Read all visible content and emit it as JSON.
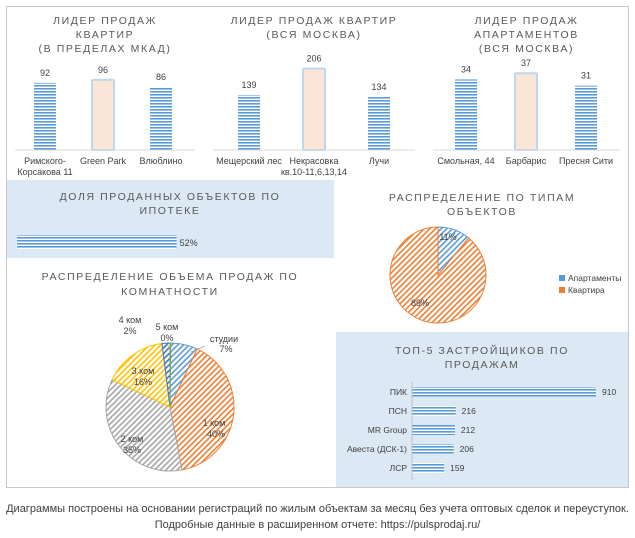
{
  "chart_data": [
    {
      "type": "bar",
      "title": "ЛИДЕР ПРОДАЖ КВАРТИР (В ПРЕДЕЛАХ МКАД)",
      "title_lines": [
        "ЛИДЕР ПРОДАЖ",
        "КВАРТИР",
        "(В ПРЕДЕЛАХ МКАД)"
      ],
      "categories": [
        "Римского-Корсакова 11",
        "Green Park",
        "Влюблино"
      ],
      "category_lines": [
        [
          "Римского-",
          "Корсакова 11"
        ],
        [
          "Green Park"
        ],
        [
          "Влюблино"
        ]
      ],
      "values": [
        92,
        96,
        86
      ],
      "highlight_index": 1
    },
    {
      "type": "bar",
      "title": "ЛИДЕР ПРОДАЖ КВАРТИР (ВСЯ МОСКВА)",
      "title_lines": [
        "ЛИДЕР ПРОДАЖ  КВАРТИР",
        "(ВСЯ МОСКВА)"
      ],
      "categories": [
        "Мещерский лес",
        "Некрасовка кв.10-11,6,13,14",
        "Лучи"
      ],
      "category_lines": [
        [
          "Мещерский лес"
        ],
        [
          "Некрасовка",
          "кв.10-11,6,13,14"
        ],
        [
          "Лучи"
        ]
      ],
      "values": [
        139,
        206,
        134
      ],
      "highlight_index": 1
    },
    {
      "type": "bar",
      "title": "ЛИДЕР ПРОДАЖ АПАРТАМЕНТОВ (ВСЯ МОСКВА)",
      "title_lines": [
        "ЛИДЕР ПРОДАЖ",
        "АПАРТАМЕНТОВ",
        "(ВСЯ МОСКВА)"
      ],
      "categories": [
        "Смольная, 44",
        "Барбарис",
        "Пресня Сити"
      ],
      "category_lines": [
        [
          "Смольная, 44"
        ],
        [
          "Барбарис"
        ],
        [
          "Пресня Сити"
        ]
      ],
      "values": [
        34,
        37,
        31
      ],
      "highlight_index": 1
    },
    {
      "type": "bar",
      "orientation": "horizontal",
      "title": "ДОЛЯ ПРОДАННЫХ ОБЪЕКТОВ ПО ИПОТЕКЕ",
      "title_lines": [
        "ДОЛЯ ПРОДАННЫХ ОБЪЕКТОВ ПО",
        "ИПОТЕКЕ"
      ],
      "values": [
        52
      ],
      "value_labels": [
        "52%"
      ],
      "xlim": [
        0,
        100
      ]
    },
    {
      "type": "pie",
      "title": "РАСПРЕДЕЛЕНИЕ ПО ТИПАМ ОБЪЕКТОВ",
      "title_lines": [
        "РАСПРЕДЕЛЕНИЕ ПО ТИПАМ",
        "ОБЪЕКТОВ"
      ],
      "categories": [
        "Апартаменты",
        "Квартира"
      ],
      "values": [
        11,
        89
      ],
      "value_labels": [
        "11%",
        "89%"
      ],
      "colors": [
        "#5b9bd5",
        "#ed7d31"
      ],
      "legend": "right"
    },
    {
      "type": "pie",
      "title": "РАСПРЕДЕЛЕНИЕ ОБЪЕМА ПРОДАЖ ПО КОМНАТНОСТИ",
      "title_lines": [
        "РАСПРЕДЕЛЕНИЕ ОБЪЕМА ПРОДАЖ ПО",
        "КОМНАТНОСТИ"
      ],
      "categories": [
        "студии",
        "1 ком",
        "2 ком",
        "3 ком",
        "4 ком",
        "5 ком"
      ],
      "values": [
        7,
        40,
        35,
        16,
        2,
        0
      ],
      "value_labels": [
        "7%",
        "40%",
        "35%",
        "16%",
        "2%",
        "0%"
      ],
      "colors": [
        "#5b9bd5",
        "#ed7d31",
        "#a5a5a5",
        "#ffc000",
        "#4472c4",
        "#70ad47"
      ]
    },
    {
      "type": "bar",
      "orientation": "horizontal",
      "title": "ТОП-5 ЗАСТРОЙЩИКОВ ПО ПРОДАЖАМ",
      "title_lines": [
        "ТОП-5 ЗАСТРОЙЩИКОВ ПО",
        "ПРОДАЖАМ"
      ],
      "categories": [
        "ПИК",
        "ПСН",
        "MR Group",
        "Авеста (ДСК-1)",
        "ЛСР"
      ],
      "values": [
        910,
        216,
        212,
        206,
        159
      ]
    }
  ],
  "colors": {
    "bar_blue": "#5b9bd5",
    "bar_highlight_fill": "#fbe5d6",
    "bar_highlight_stroke": "#bdd7ee",
    "panel_blue_bg": "#dce8f4"
  },
  "footer": {
    "line1": "Диаграммы построены на основании регистраций по жилым объектам за месяц без учета оптовых сделок и переуступок.",
    "line2": "Подробные данные в расширенном отчете: https://pulsprodaj.ru/"
  }
}
